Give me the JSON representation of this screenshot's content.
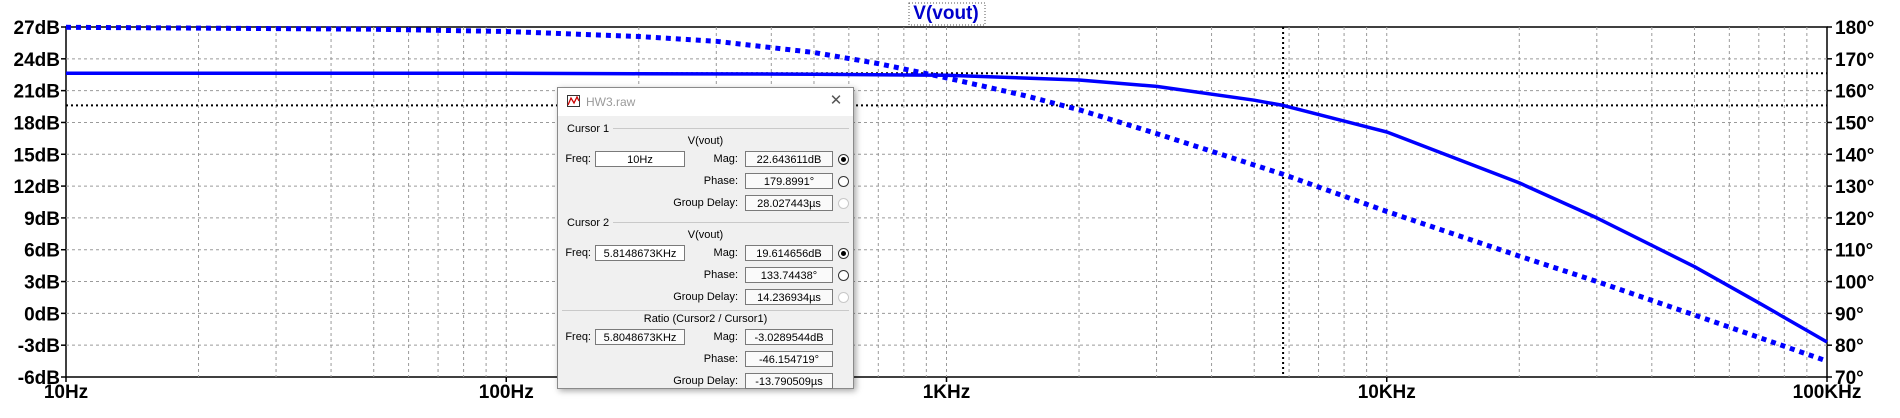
{
  "chart_data": {
    "type": "line",
    "title": "V(vout)",
    "x_scale": "log",
    "xlim": [
      10,
      100000
    ],
    "x_ticks": [
      {
        "value": 10,
        "label": "10Hz"
      },
      {
        "value": 100,
        "label": "100Hz"
      },
      {
        "value": 1000,
        "label": "1KHz"
      },
      {
        "value": 10000,
        "label": "10KHz"
      },
      {
        "value": 100000,
        "label": "100KHz"
      }
    ],
    "y_left": {
      "unit": "dB",
      "lim": [
        -6,
        27
      ],
      "ticks": [
        {
          "value": 27,
          "label": "27dB"
        },
        {
          "value": 24,
          "label": "24dB"
        },
        {
          "value": 21,
          "label": "21dB"
        },
        {
          "value": 18,
          "label": "18dB"
        },
        {
          "value": 15,
          "label": "15dB"
        },
        {
          "value": 12,
          "label": "12dB"
        },
        {
          "value": 9,
          "label": "9dB"
        },
        {
          "value": 6,
          "label": "6dB"
        },
        {
          "value": 3,
          "label": "3dB"
        },
        {
          "value": 0,
          "label": "0dB"
        },
        {
          "value": -3,
          "label": "-3dB"
        },
        {
          "value": -6,
          "label": "-6dB"
        }
      ]
    },
    "y_right": {
      "unit": "°",
      "lim": [
        70,
        180
      ],
      "ticks": [
        {
          "value": 180,
          "label": "180°"
        },
        {
          "value": 170,
          "label": "170°"
        },
        {
          "value": 160,
          "label": "160°"
        },
        {
          "value": 150,
          "label": "150°"
        },
        {
          "value": 140,
          "label": "140°"
        },
        {
          "value": 130,
          "label": "130°"
        },
        {
          "value": 120,
          "label": "120°"
        },
        {
          "value": 110,
          "label": "110°"
        },
        {
          "value": 100,
          "label": "100°"
        },
        {
          "value": 90,
          "label": "90°"
        },
        {
          "value": 80,
          "label": "80°"
        },
        {
          "value": 70,
          "label": "70°"
        }
      ]
    },
    "grid": true,
    "series": [
      {
        "role": "magnitude",
        "axis": "left",
        "style": "solid",
        "color": "#0000ff",
        "points": [
          [
            10,
            22.64
          ],
          [
            100,
            22.64
          ],
          [
            200,
            22.6
          ],
          [
            500,
            22.55
          ],
          [
            1000,
            22.45
          ],
          [
            2000,
            22.0
          ],
          [
            3000,
            21.4
          ],
          [
            5000,
            20.1
          ],
          [
            5815,
            19.61
          ],
          [
            10000,
            17.1
          ],
          [
            20000,
            12.3
          ],
          [
            30000,
            9.0
          ],
          [
            50000,
            4.4
          ],
          [
            70000,
            1.0
          ],
          [
            100000,
            -2.7
          ]
        ]
      },
      {
        "role": "phase",
        "axis": "right",
        "style": "dashed",
        "color": "#0000ff",
        "points": [
          [
            10,
            179.9
          ],
          [
            50,
            179.3
          ],
          [
            100,
            178.6
          ],
          [
            200,
            177.0
          ],
          [
            300,
            175.5
          ],
          [
            500,
            172.0
          ],
          [
            700,
            168.5
          ],
          [
            1000,
            164.0
          ],
          [
            1500,
            158.5
          ],
          [
            2000,
            154.0
          ],
          [
            3000,
            146.5
          ],
          [
            5815,
            133.7
          ],
          [
            10000,
            122.0
          ],
          [
            20000,
            108.0
          ],
          [
            30000,
            100.0
          ],
          [
            50000,
            89.5
          ],
          [
            100000,
            75.0
          ]
        ]
      }
    ],
    "cursors": {
      "cursor1": {
        "freq": 10,
        "mag": 22.643611
      },
      "cursor2": {
        "freq": 5814.8673,
        "mag": 19.614656
      }
    }
  },
  "dialog": {
    "title": "HW3.raw",
    "cursor1": {
      "heading": "Cursor 1",
      "signal": "V(vout)",
      "freq_label": "Freq:",
      "freq": "10Hz",
      "mag_label": "Mag:",
      "mag": "22.643611dB",
      "phase_label": "Phase:",
      "phase": "179.8991°",
      "gd_label": "Group Delay:",
      "gd": "28.027443µs"
    },
    "cursor2": {
      "heading": "Cursor 2",
      "signal": "V(vout)",
      "freq_label": "Freq:",
      "freq": "5.8148673KHz",
      "mag_label": "Mag:",
      "mag": "19.614656dB",
      "phase_label": "Phase:",
      "phase": "133.74438°",
      "gd_label": "Group Delay:",
      "gd": "14.236934µs"
    },
    "ratio": {
      "heading": "Ratio (Cursor2 / Cursor1)",
      "freq_label": "Freq:",
      "freq": "5.8048673KHz",
      "mag_label": "Mag:",
      "mag": "-3.0289544dB",
      "phase_label": "Phase:",
      "phase": "-46.154719°",
      "gd_label": "Group Delay:",
      "gd": "-13.790509µs"
    }
  }
}
